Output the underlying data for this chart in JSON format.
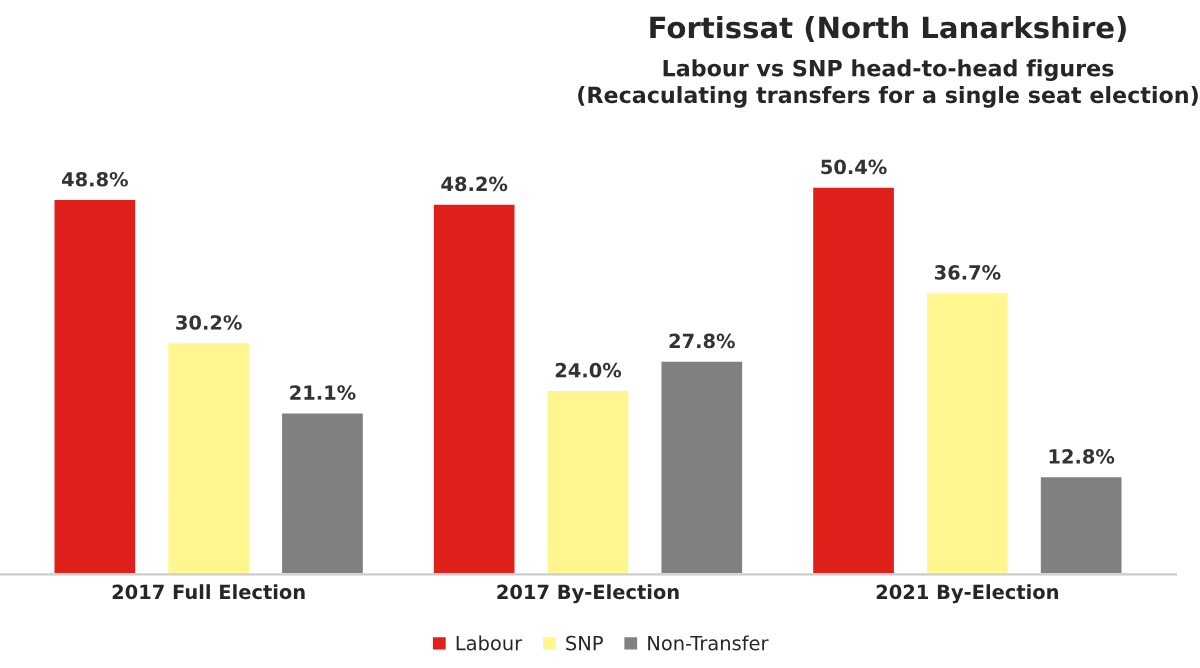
{
  "chart_data": {
    "type": "bar",
    "title": "Fortissat (North Lanarkshire)",
    "subtitle": "Labour vs SNP head-to-head figures\n(Recaculating transfers for a single seat election)",
    "categories": [
      "2017 Full Election",
      "2017 By-Election",
      "2021 By-Election"
    ],
    "series": [
      {
        "name": "Labour",
        "color": "#e0201b",
        "values": [
          48.8,
          48.2,
          50.4
        ],
        "value_labels": [
          "48.8%",
          "48.2%",
          "50.4%"
        ]
      },
      {
        "name": "SNP",
        "color": "#fff68f",
        "values": [
          30.2,
          24.0,
          36.7
        ],
        "value_labels": [
          "30.2%",
          "24.0%",
          "36.7%"
        ]
      },
      {
        "name": "Non-Transfer",
        "color": "#808080",
        "values": [
          21.1,
          27.8,
          12.8
        ],
        "value_labels": [
          "21.1%",
          "27.8%",
          "12.8%"
        ]
      }
    ],
    "legend": "bottom",
    "grid": false
  }
}
